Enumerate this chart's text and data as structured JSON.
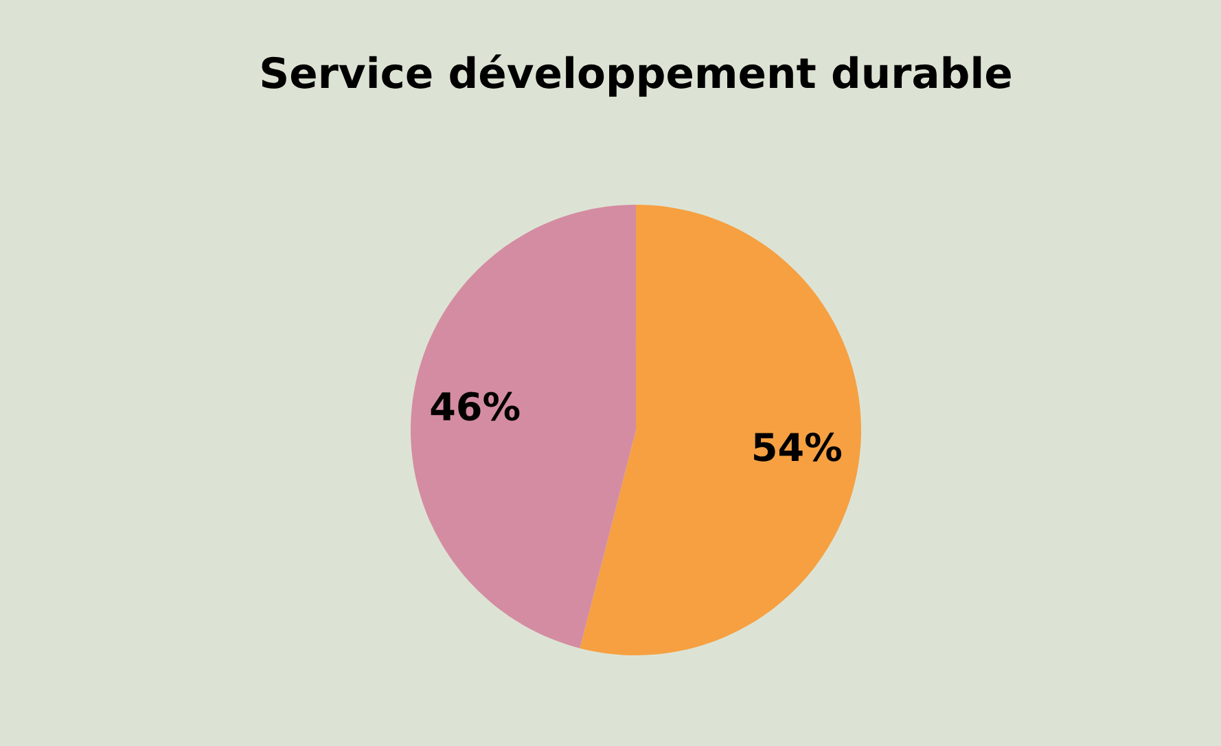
{
  "chart_data": {
    "type": "pie",
    "title": "Service développement durable",
    "categories": [
      null,
      null
    ],
    "values": [
      54,
      46
    ],
    "colors": [
      "#f6a041",
      "#d48ca2"
    ],
    "value_labels": [
      "54%",
      "46%"
    ]
  }
}
